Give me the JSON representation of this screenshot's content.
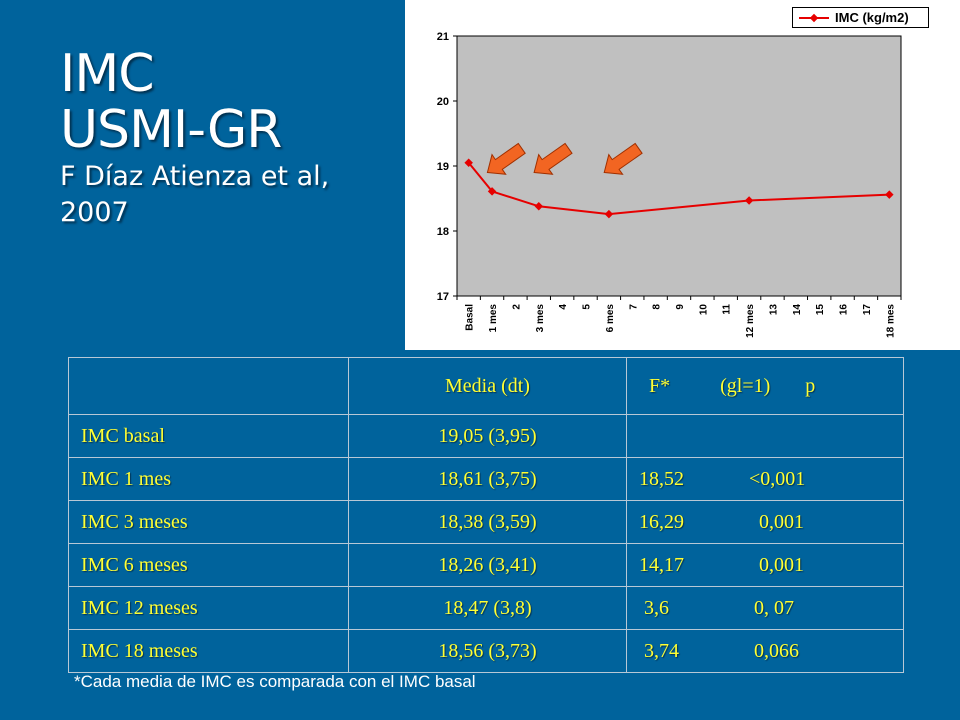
{
  "title": {
    "line1": "IMC",
    "line2": "USMI-GR",
    "line3": "F Díaz Atienza et al,",
    "line4": "2007"
  },
  "chart_data": {
    "type": "line",
    "series": [
      {
        "name": "IMC (kg/m2)",
        "color": "#e60000",
        "points": [
          {
            "x": 0,
            "y": 19.05
          },
          {
            "x": 1,
            "y": 18.61
          },
          {
            "x": 3,
            "y": 18.38
          },
          {
            "x": 6,
            "y": 18.26
          },
          {
            "x": 12,
            "y": 18.47
          },
          {
            "x": 18,
            "y": 18.56
          }
        ]
      }
    ],
    "x_categories": [
      "Basal",
      "1 mes",
      "2",
      "3 mes",
      "4",
      "5",
      "6 mes",
      "7",
      "8",
      "9",
      "10",
      "11",
      "12 mes",
      "13",
      "14",
      "15",
      "16",
      "17",
      "18 mes"
    ],
    "ylim": [
      17,
      21
    ],
    "yticks": [
      17,
      18,
      19,
      20,
      21
    ],
    "plot_background": "#c0c0c0",
    "legend_position": "top-right",
    "annotations": [
      {
        "type": "arrow",
        "color": "#f26522",
        "points_to_x": 0.8
      },
      {
        "type": "arrow",
        "color": "#f26522",
        "points_to_x": 2.8
      },
      {
        "type": "arrow",
        "color": "#f26522",
        "points_to_x": 5.8
      }
    ]
  },
  "table": {
    "header": {
      "label": "",
      "mean": "Media (dt)",
      "f": "  F*          (gl=1)       p"
    },
    "rows": [
      {
        "label": "IMC basal",
        "mean": "19,05 (3,95)",
        "f": ""
      },
      {
        "label": "IMC 1 mes",
        "mean": "18,61 (3,75)",
        "f": "18,52             <0,001"
      },
      {
        "label": "IMC 3 meses",
        "mean": "18,38 (3,59)",
        "f": "16,29               0,001"
      },
      {
        "label": "IMC 6 meses",
        "mean": "18,26 (3,41)",
        "f": "14,17               0,001"
      },
      {
        "label": "IMC 12 meses",
        "mean": "18,47 (3,8)",
        "f": " 3,6                 0, 07"
      },
      {
        "label": "IMC 18 meses",
        "mean": "18,56 (3,73)",
        "f": " 3,74               0,066"
      }
    ]
  },
  "footnote": "*Cada  media de IMC es comparada con el IMC basal",
  "colors": {
    "background": "#00639c",
    "table_text": "#ffff33",
    "line": "#e60000",
    "arrow": "#f26522"
  }
}
